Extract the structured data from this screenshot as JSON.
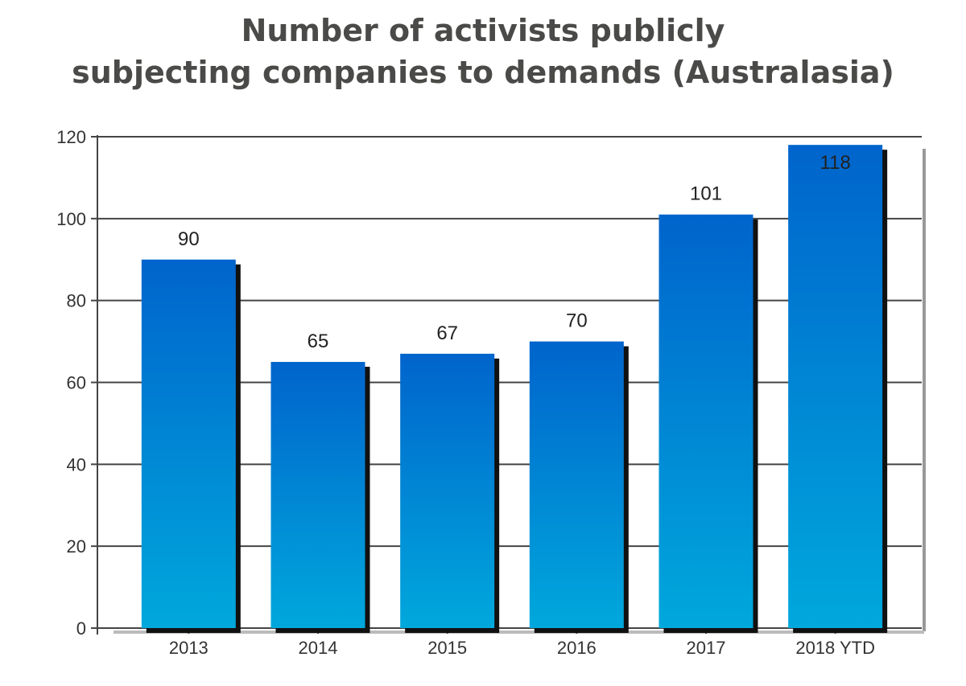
{
  "chart_data": {
    "type": "bar",
    "title_lines": [
      "Number of activists publicly",
      "subjecting companies to demands (Australasia)"
    ],
    "categories": [
      "2013",
      "2014",
      "2015",
      "2016",
      "2017",
      "2018 YTD"
    ],
    "values": [
      90,
      65,
      67,
      70,
      101,
      118
    ],
    "data_labels": [
      "90",
      "65",
      "67",
      "70",
      "101",
      "118"
    ],
    "ylim": [
      0,
      120
    ],
    "yticks": [
      0,
      20,
      40,
      60,
      80,
      100,
      120
    ],
    "ytick_labels": [
      "0",
      "20",
      "40",
      "60",
      "80",
      "100",
      "120"
    ],
    "grid": "horizontal",
    "colors": {
      "bar_top": "#0064cc",
      "bar_bottom": "#00a8dc",
      "title": "#4a4a48"
    }
  }
}
